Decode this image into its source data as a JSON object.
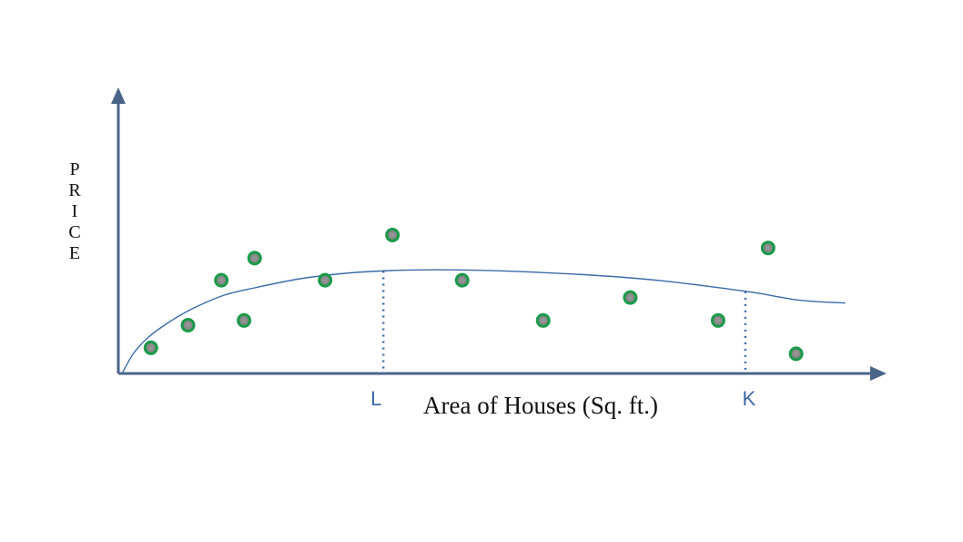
{
  "chart_data": {
    "type": "scatter",
    "title": "",
    "xlabel": "Area of Houses (Sq. ft.)",
    "ylabel": "PRICE",
    "xlim": [
      0,
      100
    ],
    "ylim": [
      0,
      100
    ],
    "grid": false,
    "legend": "none",
    "colors": {
      "axis": "#4a6488",
      "curve": "#3d6aa8",
      "point_fill": "#8c8c8c",
      "point_ring": "#1a9a4a",
      "marker_line": "#3d6aa8",
      "marker_text": "#3d6aa8"
    },
    "series": [
      {
        "type": "scatter",
        "x": [
          4.3,
          9.2,
          13.6,
          16.6,
          18.0,
          27.3,
          36.2,
          45.4,
          56.1,
          67.6,
          79.2,
          85.8,
          89.5
        ],
        "y": [
          14.1,
          26.5,
          51.2,
          29.1,
          63.3,
          51.2,
          76.0,
          51.2,
          29.1,
          41.7,
          29.1,
          68.9,
          10.8
        ]
      },
      {
        "type": "line",
        "x": [
          0.5,
          2,
          4,
          7,
          10,
          14,
          18,
          24,
          30,
          36,
          42,
          48,
          54,
          60,
          66,
          72,
          78,
          84,
          90,
          96
        ],
        "y": [
          0,
          11,
          20,
          29,
          36,
          43,
          47,
          52,
          55,
          56.5,
          56.9,
          56.6,
          55.8,
          54.6,
          53,
          50.8,
          47.8,
          44.4,
          40.2,
          38.7
        ]
      }
    ],
    "markers": [
      {
        "label": "L",
        "x": 35
      },
      {
        "label": "K",
        "x": 82.8
      }
    ]
  }
}
